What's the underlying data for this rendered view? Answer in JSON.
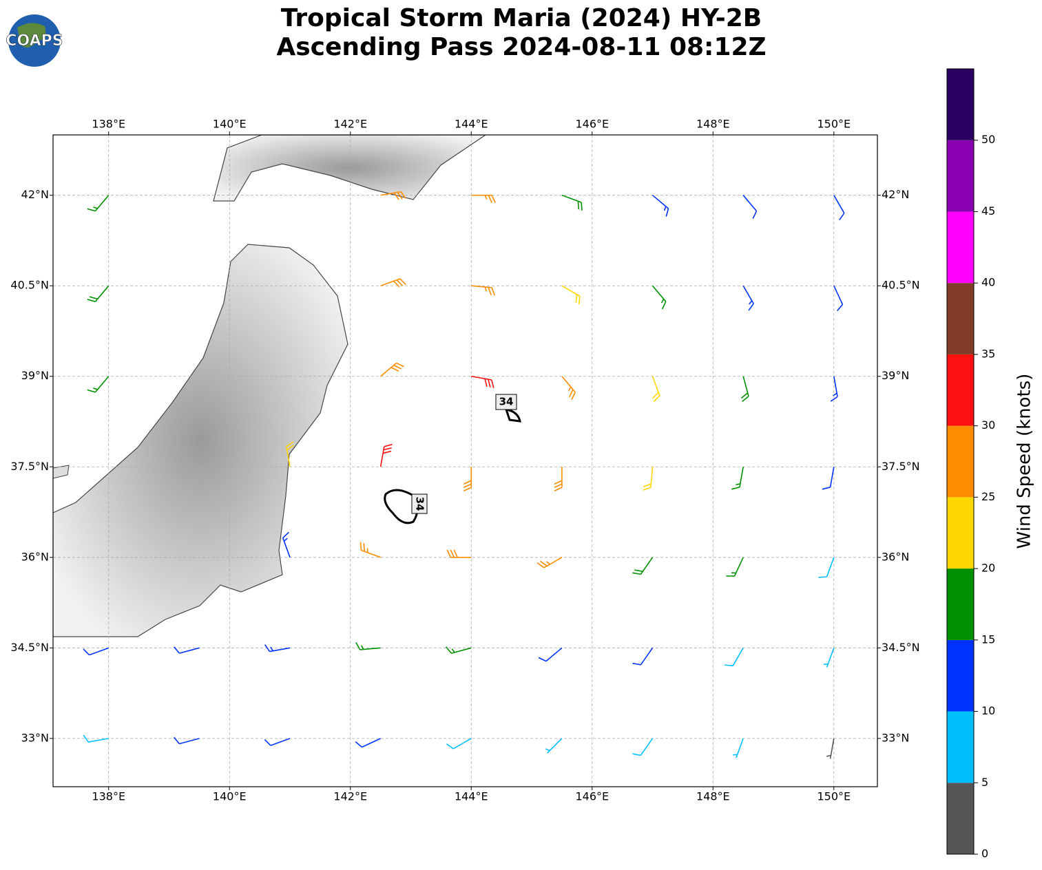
{
  "chart_data": {
    "type": "barbs",
    "title": "Tropical Storm Maria (2024) HY-2B",
    "subtitle": "Ascending Pass 2024-08-11 08:12Z",
    "logo_text": "COAPS",
    "xlim": [
      137.08,
      150.72
    ],
    "ylim": [
      32.2,
      43.0
    ],
    "xticks": [
      {
        "value": 138,
        "label": "138°E"
      },
      {
        "value": 140,
        "label": "140°E"
      },
      {
        "value": 142,
        "label": "142°E"
      },
      {
        "value": 144,
        "label": "144°E"
      },
      {
        "value": 146,
        "label": "146°E"
      },
      {
        "value": 148,
        "label": "148°E"
      },
      {
        "value": 150,
        "label": "150°E"
      }
    ],
    "yticks": [
      {
        "value": 33,
        "label": "33°N"
      },
      {
        "value": 34.5,
        "label": "34.5°N"
      },
      {
        "value": 36,
        "label": "36°N"
      },
      {
        "value": 37.5,
        "label": "37.5°N"
      },
      {
        "value": 39,
        "label": "39°N"
      },
      {
        "value": 40.5,
        "label": "40.5°N"
      },
      {
        "value": 42,
        "label": "42°N"
      }
    ],
    "grid": true,
    "contour_labels": [
      "34",
      "34"
    ],
    "barbs": {
      "lon": [
        138,
        142.5,
        144,
        145.5,
        147,
        148.5,
        150,
        138,
        142.5,
        144,
        145.5,
        147,
        148.5,
        150,
        138,
        142.5,
        144,
        145.5,
        147,
        148.5,
        150,
        141,
        142.5,
        144,
        145.5,
        147,
        148.5,
        150,
        141,
        142.5,
        144,
        145.5,
        147,
        148.5,
        150,
        138,
        139.5,
        141,
        142.5,
        144,
        145.5,
        147,
        148.5,
        150,
        138,
        139.5,
        141,
        142.5,
        144,
        145.5,
        147,
        148.5,
        150
      ],
      "lat": [
        42,
        42,
        42,
        42,
        42,
        42,
        42,
        40.5,
        40.5,
        40.5,
        40.5,
        40.5,
        40.5,
        40.5,
        39,
        39,
        39,
        39,
        39,
        39,
        39,
        37.5,
        37.5,
        37.5,
        37.5,
        37.5,
        37.5,
        37.5,
        36,
        36,
        36,
        36,
        36,
        36,
        36,
        34.5,
        34.5,
        34.5,
        34.5,
        34.5,
        34.5,
        34.5,
        34.5,
        34.5,
        33,
        33,
        33,
        33,
        33,
        33,
        33,
        33,
        33
      ],
      "speed": [
        17,
        28,
        25,
        18,
        13,
        12,
        12,
        18,
        29,
        26,
        20,
        17,
        14,
        12,
        15,
        28,
        30,
        25,
        22,
        18,
        13,
        22,
        32,
        28,
        29,
        22,
        17,
        12,
        13,
        26,
        29,
        25,
        18,
        15,
        9,
        12,
        12,
        14,
        17,
        17,
        12,
        10,
        9,
        7,
        8,
        12,
        12,
        10,
        8,
        7,
        8,
        6,
        3
      ],
      "direction": [
        220,
        80,
        90,
        110,
        130,
        140,
        150,
        220,
        70,
        95,
        120,
        140,
        150,
        155,
        220,
        50,
        100,
        140,
        160,
        165,
        170,
        350,
        10,
        180,
        180,
        185,
        190,
        190,
        340,
        290,
        270,
        240,
        215,
        205,
        200,
        250,
        255,
        260,
        265,
        255,
        230,
        215,
        210,
        200,
        260,
        255,
        250,
        245,
        240,
        225,
        215,
        200,
        190
      ]
    },
    "colorbar": {
      "label": "Wind Speed (knots)",
      "lim": [
        0,
        55
      ],
      "ticks": [
        0,
        5,
        10,
        15,
        20,
        25,
        30,
        35,
        40,
        45,
        50
      ],
      "bounds": [
        0,
        5,
        10,
        15,
        20,
        25,
        30,
        35,
        40,
        45,
        50,
        55
      ],
      "colors": [
        "#555555",
        "#00bfff",
        "#0033ff",
        "#009000",
        "#ffd700",
        "#ff8c00",
        "#ff1010",
        "#803c28",
        "#ff00ff",
        "#8800b0",
        "#2a0060"
      ]
    }
  }
}
